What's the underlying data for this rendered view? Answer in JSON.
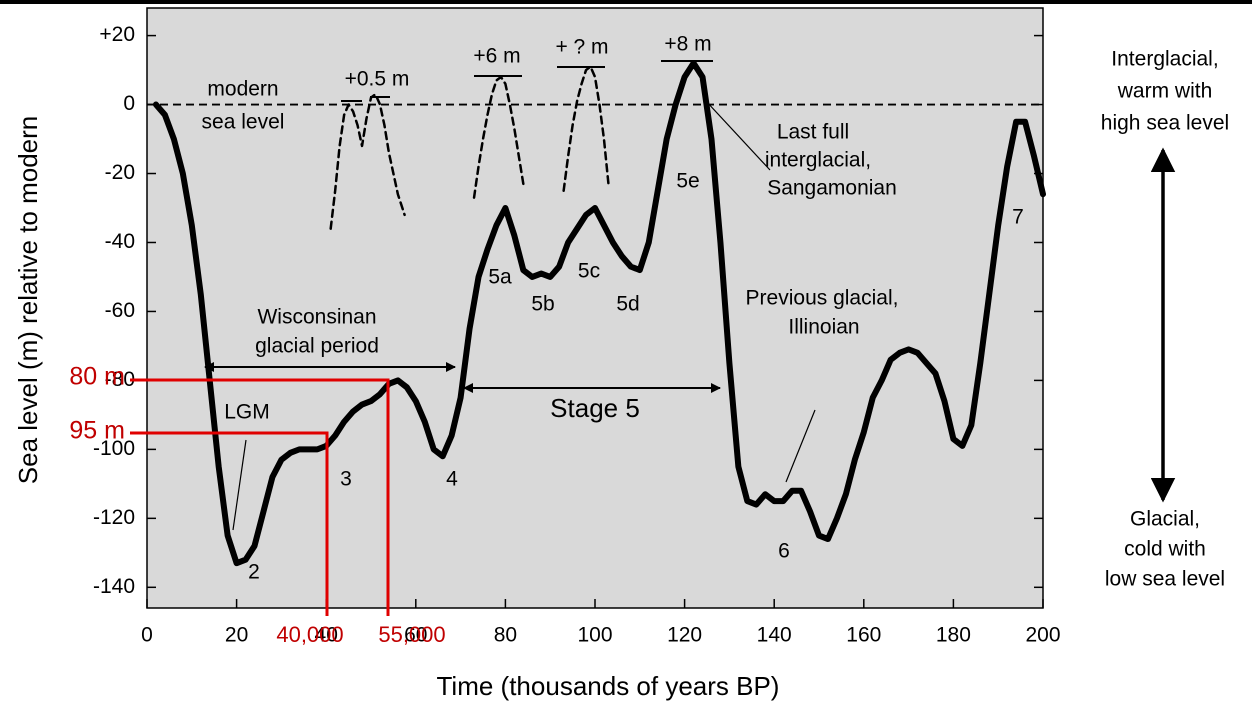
{
  "chart_data": {
    "type": "line",
    "xlabel": "Time (thousands of years BP)",
    "ylabel": "Sea level (m) relative to modern",
    "xlim": [
      0,
      200
    ],
    "ylim": [
      -146,
      28
    ],
    "xticks": [
      0,
      20,
      40,
      60,
      80,
      100,
      120,
      140,
      160,
      180,
      200
    ],
    "yticks": [
      {
        "value": 20,
        "label": "+20"
      },
      0,
      -20,
      -40,
      -60,
      -80,
      -100,
      -120,
      -140
    ],
    "series": [
      {
        "style": "solid",
        "color": "#000000",
        "x": [
          2,
          4,
          6,
          8,
          10,
          12,
          14,
          16,
          18,
          20,
          22,
          24,
          26,
          28,
          30,
          32,
          34,
          36,
          38,
          40,
          42,
          44,
          46,
          48,
          50,
          52,
          54,
          56,
          58,
          60,
          62,
          64,
          66,
          68,
          70,
          72,
          74,
          76,
          78,
          80,
          82,
          84,
          86,
          88,
          90,
          92,
          94,
          96,
          98,
          100,
          102,
          104,
          106,
          108,
          110,
          112,
          114,
          116,
          118,
          120,
          122,
          124,
          126,
          128,
          130,
          132,
          134,
          136,
          138,
          140,
          142,
          144,
          146,
          148,
          150,
          152,
          154,
          156,
          158,
          160,
          162,
          164,
          166,
          168,
          170,
          172,
          174,
          176,
          178,
          180,
          182,
          184,
          186,
          188,
          190,
          192,
          194,
          196,
          198,
          200
        ],
        "values": [
          0,
          -3,
          -10,
          -20,
          -35,
          -55,
          -80,
          -105,
          -125,
          -133,
          -132,
          -128,
          -118,
          -108,
          -103,
          -101,
          -100,
          -100,
          -100,
          -99,
          -96,
          -92,
          -89,
          -87,
          -86,
          -84,
          -81,
          -80,
          -82,
          -86,
          -92,
          -100,
          -102,
          -96,
          -85,
          -65,
          -50,
          -42,
          -35,
          -30,
          -38,
          -48,
          -50,
          -49,
          -50,
          -47,
          -40,
          -36,
          -32,
          -30,
          -35,
          -40,
          -44,
          -47,
          -48,
          -40,
          -25,
          -10,
          0,
          8,
          12,
          8,
          -10,
          -40,
          -75,
          -105,
          -115,
          -116,
          -113,
          -115,
          -115,
          -112,
          -112,
          -118,
          -125,
          -126,
          -120,
          -113,
          -103,
          -95,
          -85,
          -80,
          -74,
          -72,
          -71,
          -72,
          -75,
          -78,
          -86,
          -97,
          -99,
          -93,
          -75,
          -55,
          -35,
          -18,
          -5,
          -5,
          -15,
          -26
        ]
      },
      {
        "style": "dashed",
        "color": "#000000",
        "x": [
          41,
          42,
          43,
          44,
          45,
          46,
          47,
          48,
          49,
          50,
          51,
          52,
          53,
          54,
          55,
          56,
          57.5
        ],
        "values": [
          -36,
          -25,
          -12,
          -3,
          0,
          -2,
          -6,
          -12,
          -4,
          2,
          3,
          0,
          -6,
          -14,
          -20,
          -26,
          -32
        ]
      },
      {
        "style": "dashed",
        "color": "#000000",
        "x": [
          73,
          74,
          75,
          76,
          77,
          78,
          79,
          80,
          81,
          82,
          83,
          84
        ],
        "values": [
          -27,
          -18,
          -10,
          -3,
          3,
          7,
          8,
          6,
          0,
          -7,
          -15,
          -23
        ]
      },
      {
        "style": "dashed",
        "color": "#000000",
        "x": [
          93,
          94,
          95,
          96,
          97,
          98,
          99,
          100,
          101,
          102,
          103
        ],
        "values": [
          -25,
          -15,
          -6,
          1,
          6,
          10,
          11,
          8,
          0,
          -10,
          -23
        ]
      }
    ],
    "annotations": [
      "modern",
      "sea level",
      "+0.5 m",
      "+6 m",
      "+ ? m",
      "+8 m",
      "Last full",
      "interglacial,",
      "Sangamonian",
      "5e",
      "5a",
      "5b",
      "5c",
      "5d",
      "Wisconsinan",
      "glacial period",
      "Stage 5",
      "LGM",
      "2",
      "3",
      "4",
      "Previous glacial,",
      "Illinoian",
      "6",
      "7",
      "Interglacial,",
      "warm with",
      "high sea level",
      "Glacial,",
      "cold with",
      "low sea level"
    ],
    "highlights": [
      "80 m",
      "95 m",
      "40,000",
      "55,000"
    ]
  }
}
